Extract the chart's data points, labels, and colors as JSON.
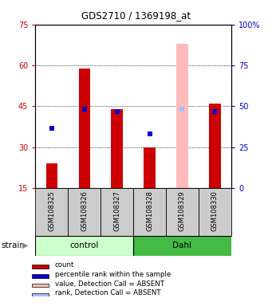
{
  "title": "GDS2710 / 1369198_at",
  "samples": [
    "GSM108325",
    "GSM108326",
    "GSM108327",
    "GSM108328",
    "GSM108329",
    "GSM108330"
  ],
  "red_bars": [
    24,
    59,
    44,
    30,
    0,
    46
  ],
  "blue_markers": [
    37,
    44,
    43,
    35,
    44,
    43
  ],
  "absent_value_bar_index": 4,
  "absent_value_bar_height": 68,
  "absent_rank_marker_val": 44,
  "absent_indices": [
    4
  ],
  "ylim_left": [
    15,
    75
  ],
  "ylim_right": [
    0,
    100
  ],
  "left_ticks": [
    15,
    30,
    45,
    60,
    75
  ],
  "right_ticks": [
    0,
    25,
    50,
    75,
    100
  ],
  "left_tick_labels": [
    "15",
    "30",
    "45",
    "60",
    "75"
  ],
  "right_tick_labels": [
    "0",
    "25",
    "50",
    "75",
    "100%"
  ],
  "left_color": "#cc0000",
  "right_color": "#0000cc",
  "control_color": "#ccffcc",
  "dahl_color": "#44bb44",
  "gray_box_color": "#cccccc",
  "absent_bar_color": "#ffbbbb",
  "absent_rank_color": "#aabbff",
  "legend_items": [
    {
      "color": "#cc0000",
      "label": "count"
    },
    {
      "color": "#0000cc",
      "label": "percentile rank within the sample"
    },
    {
      "color": "#ffbbbb",
      "label": "value, Detection Call = ABSENT"
    },
    {
      "color": "#aabbff",
      "label": "rank, Detection Call = ABSENT"
    }
  ],
  "bar_width": 0.35
}
